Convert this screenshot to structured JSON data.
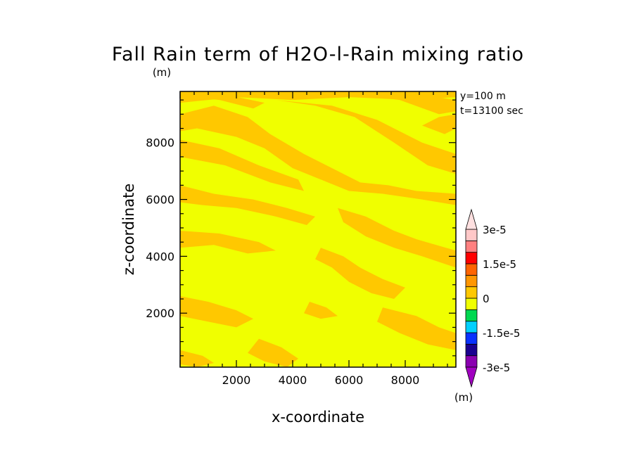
{
  "chart_data": {
    "type": "heatmap",
    "title": "Fall Rain term of H2O-l-Rain mixing ratio",
    "title_units": "(m)",
    "xlabel": "x-coordinate",
    "ylabel": "z-coordinate",
    "annotation_lines": [
      "y=100 m",
      "t=13100 sec"
    ],
    "xlim": [
      0,
      9800
    ],
    "ylim": [
      100,
      9800
    ],
    "x_ticks": [
      2000,
      4000,
      6000,
      8000
    ],
    "y_ticks": [
      2000,
      4000,
      6000,
      8000
    ],
    "colorbar": {
      "units": "(m)",
      "levels": [
        -3e-05,
        -2.5e-05,
        -2e-05,
        -1.5e-05,
        -1e-05,
        -5e-06,
        0,
        5e-06,
        1e-05,
        1.5e-05,
        2e-05,
        2.5e-05,
        3e-05
      ],
      "tick_labels": [
        {
          "value": 3e-05,
          "label": "3e-5"
        },
        {
          "value": 1.5e-05,
          "label": "1.5e-5"
        },
        {
          "value": 0,
          "label": "0"
        },
        {
          "value": -1.5e-05,
          "label": "-1.5e-5"
        },
        {
          "value": -3e-05,
          "label": "-3e-5"
        }
      ],
      "colors": [
        "#8a00b0",
        "#1a0090",
        "#0a32ff",
        "#00d0ff",
        "#00d850",
        "#f0ff00",
        "#ffc800",
        "#ff9600",
        "#ff6400",
        "#ff0000",
        "#ff8080",
        "#ffc8c8"
      ],
      "under_color": "#a000c0",
      "over_color": "#ffe0e0"
    },
    "background_class_color": "#f0ff00",
    "feature_class_color": "#ffc800",
    "regions": [
      {
        "points": [
          [
            0,
            9800
          ],
          [
            9800,
            9800
          ],
          [
            9800,
            9600
          ],
          [
            8200,
            9500
          ],
          [
            6000,
            9600
          ],
          [
            4000,
            9500
          ],
          [
            2000,
            9600
          ],
          [
            0,
            9400
          ]
        ]
      },
      {
        "points": [
          [
            0,
            9000
          ],
          [
            1200,
            9300
          ],
          [
            2400,
            8900
          ],
          [
            3200,
            8300
          ],
          [
            4400,
            7600
          ],
          [
            5600,
            7000
          ],
          [
            6400,
            6600
          ],
          [
            7400,
            6500
          ],
          [
            8400,
            6300
          ],
          [
            9800,
            6200
          ],
          [
            9800,
            5800
          ],
          [
            8600,
            6000
          ],
          [
            7200,
            6200
          ],
          [
            6000,
            6300
          ],
          [
            5000,
            6700
          ],
          [
            4000,
            7100
          ],
          [
            3000,
            7800
          ],
          [
            2000,
            8200
          ],
          [
            600,
            8500
          ],
          [
            0,
            8400
          ]
        ]
      },
      {
        "points": [
          [
            3400,
            9500
          ],
          [
            4800,
            9300
          ],
          [
            6200,
            8900
          ],
          [
            7600,
            8000
          ],
          [
            8800,
            7200
          ],
          [
            9800,
            6900
          ],
          [
            9800,
            7600
          ],
          [
            8600,
            8000
          ],
          [
            7000,
            8800
          ],
          [
            5400,
            9300
          ]
        ]
      },
      {
        "points": [
          [
            6200,
            9700
          ],
          [
            7800,
            9500
          ],
          [
            9200,
            9000
          ],
          [
            9800,
            9100
          ],
          [
            9800,
            9500
          ],
          [
            8400,
            9700
          ]
        ]
      },
      {
        "points": [
          [
            400,
            9600
          ],
          [
            1400,
            9500
          ],
          [
            2600,
            9200
          ],
          [
            3000,
            9400
          ],
          [
            1800,
            9650
          ]
        ]
      },
      {
        "points": [
          [
            0,
            8100
          ],
          [
            1400,
            7800
          ],
          [
            2800,
            7200
          ],
          [
            4200,
            6700
          ],
          [
            4400,
            6300
          ],
          [
            3200,
            6600
          ],
          [
            1600,
            7200
          ],
          [
            0,
            7500
          ]
        ]
      },
      {
        "points": [
          [
            0,
            6500
          ],
          [
            1200,
            6200
          ],
          [
            2600,
            6000
          ],
          [
            3800,
            5700
          ],
          [
            4800,
            5400
          ],
          [
            4500,
            5100
          ],
          [
            3400,
            5400
          ],
          [
            2000,
            5700
          ],
          [
            800,
            5800
          ],
          [
            0,
            5900
          ]
        ]
      },
      {
        "points": [
          [
            0,
            4900
          ],
          [
            1400,
            4800
          ],
          [
            2800,
            4500
          ],
          [
            3400,
            4200
          ],
          [
            2400,
            4100
          ],
          [
            1200,
            4400
          ],
          [
            0,
            4300
          ]
        ]
      },
      {
        "points": [
          [
            5600,
            5700
          ],
          [
            6600,
            5400
          ],
          [
            7600,
            4900
          ],
          [
            8400,
            4600
          ],
          [
            9800,
            4200
          ],
          [
            9800,
            3600
          ],
          [
            8600,
            4000
          ],
          [
            7600,
            4300
          ],
          [
            6600,
            4700
          ],
          [
            5800,
            5200
          ]
        ]
      },
      {
        "points": [
          [
            5000,
            4300
          ],
          [
            5800,
            4000
          ],
          [
            6400,
            3600
          ],
          [
            7200,
            3200
          ],
          [
            8000,
            2900
          ],
          [
            7600,
            2500
          ],
          [
            6800,
            2700
          ],
          [
            6000,
            3100
          ],
          [
            5400,
            3600
          ],
          [
            4800,
            3900
          ]
        ]
      },
      {
        "points": [
          [
            0,
            2600
          ],
          [
            1000,
            2400
          ],
          [
            2000,
            2100
          ],
          [
            2600,
            1800
          ],
          [
            2000,
            1500
          ],
          [
            1000,
            1700
          ],
          [
            0,
            1900
          ]
        ]
      },
      {
        "points": [
          [
            7200,
            2200
          ],
          [
            8400,
            1900
          ],
          [
            9200,
            1500
          ],
          [
            9800,
            1300
          ],
          [
            9800,
            700
          ],
          [
            8800,
            900
          ],
          [
            7800,
            1300
          ],
          [
            7000,
            1700
          ]
        ]
      },
      {
        "points": [
          [
            2800,
            1100
          ],
          [
            3600,
            800
          ],
          [
            4200,
            400
          ],
          [
            3800,
            100
          ],
          [
            3000,
            300
          ],
          [
            2400,
            600
          ]
        ]
      },
      {
        "points": [
          [
            0,
            700
          ],
          [
            800,
            500
          ],
          [
            1200,
            250
          ],
          [
            600,
            100
          ],
          [
            0,
            200
          ]
        ]
      },
      {
        "points": [
          [
            8600,
            8600
          ],
          [
            9400,
            8300
          ],
          [
            9800,
            8500
          ],
          [
            9800,
            9000
          ],
          [
            9200,
            8900
          ]
        ]
      },
      {
        "points": [
          [
            4600,
            2400
          ],
          [
            5200,
            2200
          ],
          [
            5600,
            1900
          ],
          [
            5000,
            1800
          ],
          [
            4400,
            2000
          ]
        ]
      }
    ]
  }
}
